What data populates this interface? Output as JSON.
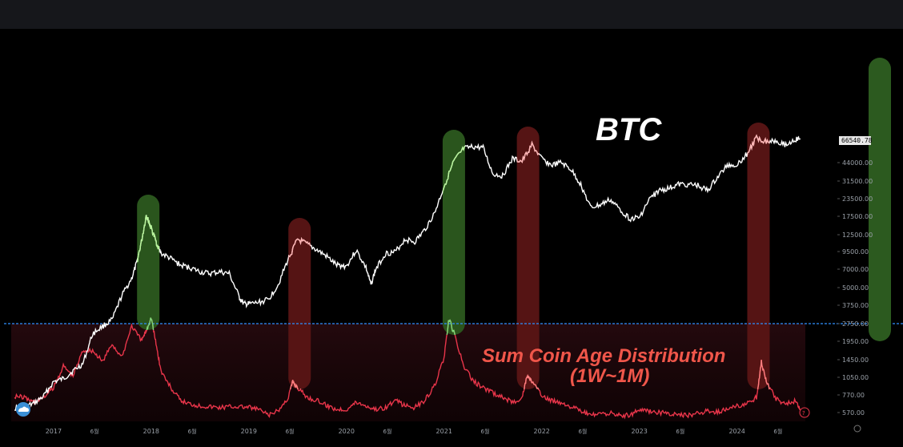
{
  "chart_data": {
    "type": "line",
    "title": "BTC",
    "indicator_label_line1": "Sum Coin Age Distribution",
    "indicator_label_line2": "(1W~1M)",
    "last_price": "66540.78",
    "y_scale": "log",
    "y_ticks": [
      44000.0,
      31500.0,
      23500.0,
      17500.0,
      12500.0,
      9500.0,
      7000.0,
      5000.0,
      3750.0,
      2750.0,
      1950.0,
      1450.0,
      1050.0,
      770.0,
      570.0
    ],
    "y_tick_labels": [
      "44000.00",
      "31500.00",
      "23500.00",
      "17500.00",
      "12500.00",
      "9500.00",
      "7000.00",
      "5000.00",
      "3750.00",
      "2750.00",
      "1950.00",
      "1450.00",
      "1050.00",
      "770.00",
      "570.00"
    ],
    "x_ticks": [
      {
        "label": "2017",
        "t": 2017.0,
        "kind": "year"
      },
      {
        "label": "6월",
        "t": 2017.42,
        "kind": "month"
      },
      {
        "label": "2018",
        "t": 2018.0,
        "kind": "year"
      },
      {
        "label": "6월",
        "t": 2018.42,
        "kind": "month"
      },
      {
        "label": "2019",
        "t": 2019.0,
        "kind": "year"
      },
      {
        "label": "6월",
        "t": 2019.42,
        "kind": "month"
      },
      {
        "label": "2020",
        "t": 2020.0,
        "kind": "year"
      },
      {
        "label": "6월",
        "t": 2020.42,
        "kind": "month"
      },
      {
        "label": "2021",
        "t": 2021.0,
        "kind": "year"
      },
      {
        "label": "6월",
        "t": 2021.42,
        "kind": "month"
      },
      {
        "label": "2022",
        "t": 2022.0,
        "kind": "year"
      },
      {
        "label": "6월",
        "t": 2022.42,
        "kind": "month"
      },
      {
        "label": "2023",
        "t": 2023.0,
        "kind": "year"
      },
      {
        "label": "6월",
        "t": 2023.42,
        "kind": "month"
      },
      {
        "label": "2024",
        "t": 2024.0,
        "kind": "year"
      },
      {
        "label": "6월",
        "t": 2024.42,
        "kind": "month"
      }
    ],
    "series": [
      {
        "name": "BTC",
        "color": "#ffffff",
        "x": [
          2016.6,
          2016.7,
          2016.8,
          2016.9,
          2017.0,
          2017.1,
          2017.2,
          2017.3,
          2017.4,
          2017.5,
          2017.6,
          2017.7,
          2017.8,
          2017.85,
          2017.9,
          2017.95,
          2017.97,
          2018.0,
          2018.05,
          2018.1,
          2018.2,
          2018.3,
          2018.4,
          2018.5,
          2018.6,
          2018.7,
          2018.8,
          2018.9,
          2018.95,
          2019.0,
          2019.1,
          2019.2,
          2019.3,
          2019.4,
          2019.5,
          2019.6,
          2019.7,
          2019.8,
          2019.9,
          2020.0,
          2020.1,
          2020.2,
          2020.25,
          2020.3,
          2020.4,
          2020.5,
          2020.6,
          2020.7,
          2020.8,
          2020.9,
          2021.0,
          2021.1,
          2021.2,
          2021.3,
          2021.4,
          2021.5,
          2021.6,
          2021.7,
          2021.8,
          2021.9,
          2022.0,
          2022.1,
          2022.2,
          2022.3,
          2022.4,
          2022.5,
          2022.6,
          2022.7,
          2022.8,
          2022.9,
          2023.0,
          2023.1,
          2023.2,
          2023.3,
          2023.4,
          2023.5,
          2023.6,
          2023.7,
          2023.8,
          2023.9,
          2024.0,
          2024.1,
          2024.2,
          2024.3,
          2024.4,
          2024.5,
          2024.6,
          2024.65
        ],
        "y": [
          600,
          610,
          650,
          740,
          950,
          1000,
          1150,
          1300,
          2200,
          2500,
          2800,
          4300,
          5800,
          7500,
          11000,
          17500,
          16000,
          14000,
          11000,
          9000,
          8200,
          7300,
          7000,
          6500,
          6300,
          6500,
          6300,
          4200,
          3700,
          3700,
          3800,
          4000,
          5200,
          8000,
          11500,
          10500,
          9500,
          8500,
          7300,
          7200,
          9500,
          7000,
          5200,
          6800,
          9000,
          9200,
          11500,
          11000,
          13500,
          18000,
          29000,
          45000,
          56000,
          58000,
          57000,
          36000,
          35000,
          47000,
          45000,
          60000,
          47000,
          42000,
          44000,
          39000,
          30000,
          20000,
          21000,
          23000,
          19500,
          16500,
          16800,
          23000,
          27000,
          28000,
          30000,
          30000,
          29500,
          27000,
          34000,
          42000,
          42500,
          51000,
          68000,
          64000,
          65000,
          60000,
          66000,
          66540
        ]
      },
      {
        "name": "Sum Coin Age Distribution (1W~1M)",
        "color": "#e8354a",
        "x": [
          2016.6,
          2016.7,
          2016.8,
          2016.9,
          2017.0,
          2017.1,
          2017.2,
          2017.3,
          2017.4,
          2017.5,
          2017.6,
          2017.7,
          2017.8,
          2017.9,
          2017.95,
          2018.0,
          2018.05,
          2018.1,
          2018.2,
          2018.3,
          2018.4,
          2018.5,
          2018.6,
          2018.7,
          2018.8,
          2018.9,
          2019.0,
          2019.1,
          2019.2,
          2019.3,
          2019.4,
          2019.45,
          2019.5,
          2019.6,
          2019.7,
          2019.8,
          2019.9,
          2020.0,
          2020.1,
          2020.2,
          2020.3,
          2020.4,
          2020.5,
          2020.6,
          2020.7,
          2020.8,
          2020.9,
          2021.0,
          2021.05,
          2021.1,
          2021.2,
          2021.3,
          2021.4,
          2021.5,
          2021.6,
          2021.7,
          2021.8,
          2021.85,
          2021.9,
          2022.0,
          2022.1,
          2022.2,
          2022.3,
          2022.4,
          2022.5,
          2022.6,
          2022.7,
          2022.8,
          2022.9,
          2023.0,
          2023.1,
          2023.2,
          2023.3,
          2023.4,
          2023.5,
          2023.6,
          2023.7,
          2023.8,
          2023.9,
          2024.0,
          2024.1,
          2024.2,
          2024.25,
          2024.3,
          2024.4,
          2024.5,
          2024.6,
          2024.65
        ],
        "y": [
          780,
          760,
          700,
          760,
          900,
          1300,
          1100,
          1700,
          1700,
          1400,
          1900,
          1500,
          2600,
          2000,
          2400,
          3000,
          1900,
          1200,
          900,
          720,
          680,
          660,
          650,
          640,
          650,
          650,
          640,
          620,
          560,
          600,
          750,
          1000,
          900,
          760,
          720,
          660,
          620,
          620,
          700,
          660,
          620,
          640,
          720,
          660,
          640,
          720,
          920,
          1500,
          2900,
          2300,
          1300,
          1000,
          900,
          820,
          760,
          700,
          760,
          1100,
          1000,
          780,
          720,
          700,
          650,
          600,
          560,
          570,
          580,
          560,
          560,
          620,
          600,
          590,
          570,
          560,
          560,
          580,
          600,
          590,
          620,
          660,
          680,
          760,
          1400,
          1000,
          740,
          680,
          720,
          620
        ]
      }
    ],
    "highlights": [
      {
        "kind": "green",
        "center": 2017.97
      },
      {
        "kind": "red",
        "center": 2019.52
      },
      {
        "kind": "green",
        "center": 2021.1
      },
      {
        "kind": "red",
        "center": 2021.86
      },
      {
        "kind": "red",
        "center": 2024.22
      }
    ],
    "threshold_line": {
      "value": 2700,
      "color": "#2f8fff"
    },
    "colors": {
      "background": "#000000",
      "topbar": "#16171b",
      "btc_line": "#ffffff",
      "indicator_line": "#e8354a",
      "green_highlight": "#2c5a1f",
      "red_highlight": "#5a1515",
      "threshold": "#2f8fff",
      "indicator_label": "#f0564a"
    }
  }
}
